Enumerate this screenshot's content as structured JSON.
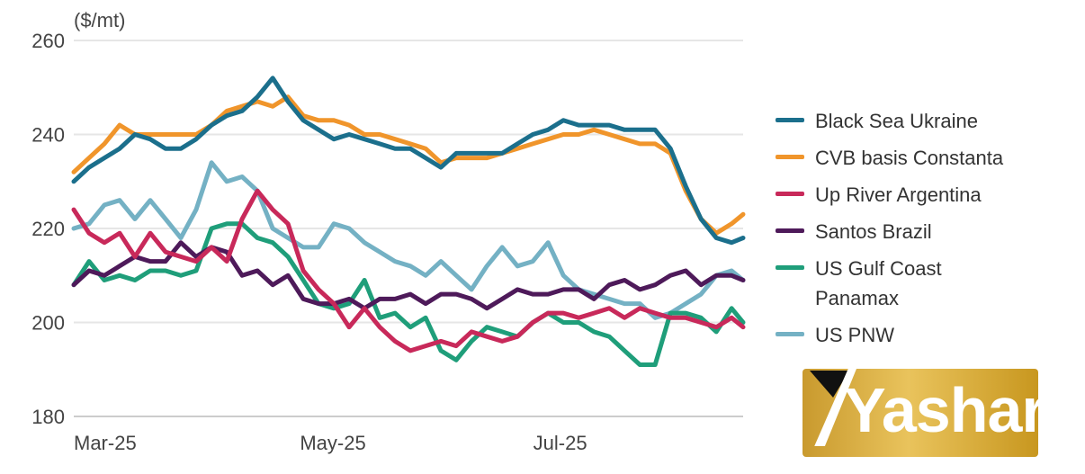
{
  "chart_data": {
    "type": "line",
    "unit_label": "($/mt)",
    "ylim": [
      180,
      260
    ],
    "yticks": [
      180,
      200,
      220,
      240,
      260
    ],
    "xlim_days_since_mar1": [
      0,
      175
    ],
    "xticks": [
      {
        "label": "Mar-25",
        "day": 0
      },
      {
        "label": "May-25",
        "day": 61
      },
      {
        "label": "Jul-25",
        "day": 122
      }
    ],
    "grid": true,
    "legend_position": "right",
    "x": [
      0,
      4,
      8,
      12,
      16,
      20,
      24,
      28,
      32,
      36,
      40,
      44,
      48,
      52,
      56,
      60,
      64,
      68,
      72,
      76,
      80,
      84,
      88,
      92,
      96,
      100,
      104,
      108,
      112,
      116,
      120,
      124,
      128,
      132,
      136,
      140,
      144,
      148,
      152,
      156,
      160,
      164,
      168,
      172,
      175
    ],
    "series": [
      {
        "name": "Black Sea Ukraine",
        "color": "#1b6f8c",
        "values": [
          230,
          233,
          235,
          237,
          240,
          239,
          237,
          237,
          239,
          242,
          244,
          245,
          248,
          252,
          247,
          243,
          241,
          239,
          240,
          239,
          238,
          237,
          237,
          235,
          233,
          236,
          236,
          236,
          236,
          238,
          240,
          241,
          243,
          242,
          242,
          242,
          241,
          241,
          241,
          237,
          229,
          222,
          218,
          217,
          218
        ]
      },
      {
        "name": "CVB basis Constanta",
        "color": "#f0952b",
        "values": [
          232,
          235,
          238,
          242,
          240,
          240,
          240,
          240,
          240,
          242,
          245,
          246,
          247,
          246,
          248,
          244,
          243,
          243,
          242,
          240,
          240,
          239,
          238,
          237,
          234,
          235,
          235,
          235,
          236,
          237,
          238,
          239,
          240,
          240,
          241,
          240,
          239,
          238,
          238,
          236,
          228,
          222,
          219,
          221,
          223
        ]
      },
      {
        "name": "Up River Argentina",
        "color": "#c8295a",
        "values": [
          224,
          219,
          217,
          219,
          214,
          219,
          215,
          214,
          213,
          216,
          213,
          222,
          228,
          224,
          221,
          211,
          207,
          204,
          199,
          203,
          199,
          196,
          194,
          195,
          196,
          195,
          198,
          197,
          196,
          197,
          200,
          202,
          202,
          201,
          202,
          203,
          201,
          203,
          202,
          201,
          201,
          200,
          199,
          201,
          199
        ]
      },
      {
        "name": "Santos Brazil",
        "color": "#4e1a5a",
        "values": [
          208,
          211,
          210,
          212,
          214,
          213,
          213,
          217,
          214,
          216,
          215,
          210,
          211,
          208,
          210,
          205,
          204,
          204,
          205,
          203,
          205,
          205,
          206,
          204,
          206,
          206,
          205,
          203,
          205,
          207,
          206,
          206,
          207,
          207,
          205,
          208,
          209,
          207,
          208,
          210,
          211,
          208,
          210,
          210,
          209
        ]
      },
      {
        "name": "US Gulf Coast Panamax",
        "color": "#1f9e7a",
        "values": [
          208,
          213,
          209,
          210,
          209,
          211,
          211,
          210,
          211,
          220,
          221,
          221,
          218,
          217,
          214,
          209,
          204,
          203,
          204,
          209,
          201,
          202,
          199,
          201,
          194,
          192,
          196,
          199,
          198,
          197,
          200,
          202,
          200,
          200,
          198,
          197,
          194,
          191,
          191,
          202,
          202,
          201,
          198,
          203,
          200
        ]
      },
      {
        "name": "US PNW",
        "color": "#74b1c4",
        "values": [
          220,
          221,
          225,
          226,
          222,
          226,
          222,
          218,
          224,
          234,
          230,
          231,
          228,
          220,
          218,
          216,
          216,
          221,
          220,
          217,
          215,
          213,
          212,
          210,
          213,
          210,
          207,
          212,
          216,
          212,
          213,
          217,
          210,
          207,
          206,
          205,
          204,
          204,
          201,
          202,
          204,
          206,
          210,
          211,
          209
        ]
      }
    ]
  },
  "legend": {
    "items": [
      "Black Sea Ukraine",
      "CVB basis Constanta",
      "Up River Argentina",
      "Santos Brazil",
      "US Gulf Coast",
      "US PNW"
    ],
    "gulf_second_line": "Panamax"
  },
  "logo": {
    "text": "Yashar"
  }
}
